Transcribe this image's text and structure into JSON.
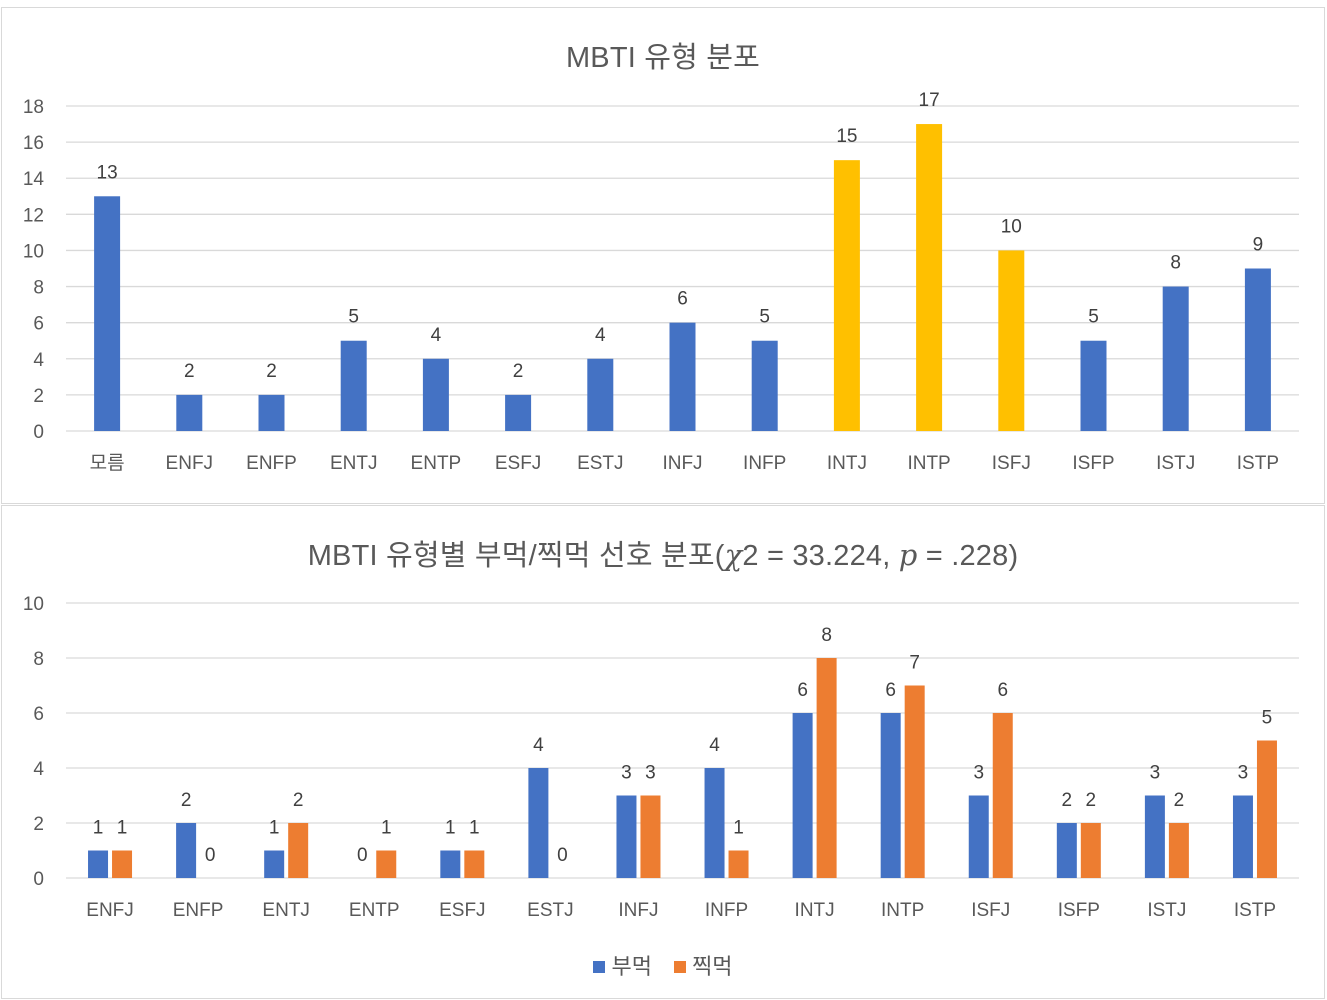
{
  "colors": {
    "blue": "#4472C4",
    "orange": "#ED7D31",
    "gold": "#FFC000",
    "grid": "#D9D9D9",
    "text": "#595959",
    "label": "#404040"
  },
  "chart_data": [
    {
      "type": "bar",
      "title": "MBTI 유형 분포",
      "categories": [
        "모름",
        "ENFJ",
        "ENFP",
        "ENTJ",
        "ENTP",
        "ESFJ",
        "ESTJ",
        "INFJ",
        "INFP",
        "INTJ",
        "INTP",
        "ISFJ",
        "ISFP",
        "ISTJ",
        "ISTP"
      ],
      "values": [
        13,
        2,
        2,
        5,
        4,
        2,
        4,
        6,
        5,
        15,
        17,
        10,
        5,
        8,
        9
      ],
      "highlighted_categories": [
        "INTJ",
        "INTP",
        "ISFJ"
      ],
      "bar_color": "#4472C4",
      "highlight_color": "#FFC000",
      "ylim": [
        0,
        18
      ],
      "yticks": [
        0,
        2,
        4,
        6,
        8,
        10,
        12,
        14,
        16,
        18
      ],
      "grid": true,
      "data_labels": true
    },
    {
      "type": "bar",
      "title_parts": [
        "MBTI 유형별 부먹/찍먹 선호 분포(",
        "χ",
        "2 = 33.224, ",
        "p",
        " = .228)"
      ],
      "categories": [
        "ENFJ",
        "ENFP",
        "ENTJ",
        "ENTP",
        "ESFJ",
        "ESTJ",
        "INFJ",
        "INFP",
        "INTJ",
        "INTP",
        "ISFJ",
        "ISFP",
        "ISTJ",
        "ISTP"
      ],
      "series": [
        {
          "name": "부먹",
          "color": "#4472C4",
          "values": [
            1,
            2,
            1,
            0,
            1,
            4,
            3,
            4,
            6,
            6,
            3,
            2,
            3,
            3
          ]
        },
        {
          "name": "찍먹",
          "color": "#ED7D31",
          "values": [
            1,
            0,
            2,
            1,
            1,
            0,
            3,
            1,
            8,
            7,
            6,
            2,
            2,
            5
          ]
        }
      ],
      "ylim": [
        0,
        10
      ],
      "yticks": [
        0,
        2,
        4,
        6,
        8,
        10
      ],
      "grid": true,
      "data_labels": true,
      "legend": "bottom"
    }
  ]
}
